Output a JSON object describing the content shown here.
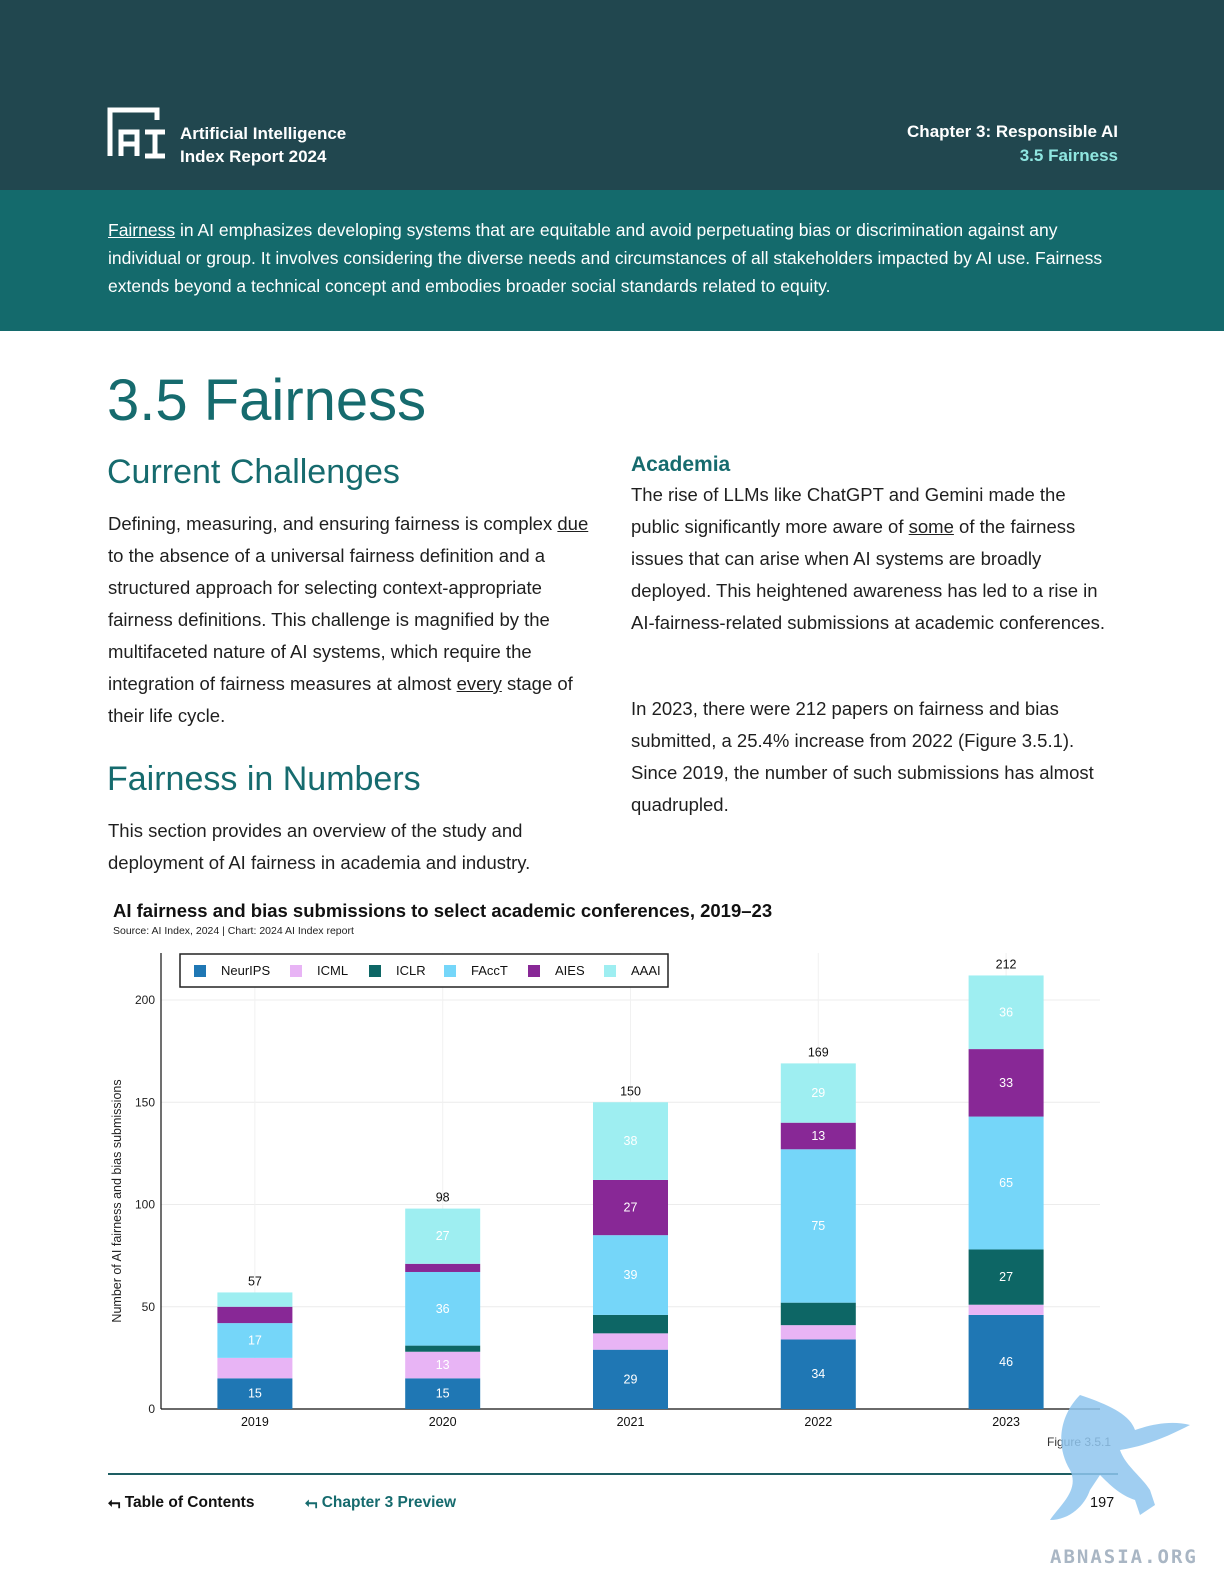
{
  "header": {
    "brand_line1": "Artificial Intelligence",
    "brand_line2": "Index Report 2024",
    "chapter": "Chapter 3: Responsible AI",
    "section": "3.5 Fairness"
  },
  "intro": {
    "link_word": "Fairness",
    "text": " in AI emphasizes developing systems that are equitable and avoid perpetuating bias or discrimination against any individual or group. It involves considering the diverse needs and circumstances of all stakeholders impacted by AI use. Fairness extends beyond a technical concept and embodies broader social standards related to equity."
  },
  "main": {
    "title": "3.5 Fairness",
    "left": {
      "heading1": "Current Challenges",
      "p1_a": "Defining, measuring, and ensuring fairness is complex ",
      "p1_link1": "due",
      "p1_b": " to the absence of a universal fairness definition and a structured approach for selecting context-appropriate fairness definitions. This challenge is magnified by the multifaceted nature of AI systems, which require the integration of fairness measures at almost ",
      "p1_link2": "every",
      "p1_c": " stage of their life cycle.",
      "heading2": "Fairness in Numbers",
      "p2": "This section provides an overview of the study and deployment of AI fairness in academia and industry."
    },
    "right": {
      "heading": "Academia",
      "p1_a": "The rise of LLMs like ChatGPT and Gemini made the public significantly more aware of ",
      "p1_link": "some",
      "p1_b": " of the fairness issues that can arise when AI systems are broadly deployed. This heightened awareness has led to a rise in AI-fairness-related submissions at academic conferences.",
      "p2": "In 2023, there were 212 papers on fairness and bias submitted, a 25.4% increase from 2022 (Figure 3.5.1). Since 2019, the number of such submissions has almost quadrupled."
    }
  },
  "chart_data": {
    "type": "bar",
    "stacked": true,
    "title": "AI fairness and bias submissions to select academic conferences, 2019–23",
    "source": "Source: AI Index, 2024 | Chart: 2024 AI Index report",
    "ylabel": "Number of AI fairness and bias submissions",
    "xlabel": "",
    "ylim": [
      0,
      225
    ],
    "yticks": [
      0,
      50,
      100,
      150,
      200
    ],
    "categories": [
      "2019",
      "2020",
      "2021",
      "2022",
      "2023"
    ],
    "totals": [
      57,
      98,
      150,
      169,
      212
    ],
    "legend_position": "top-left",
    "series": [
      {
        "name": "NeurIPS",
        "color": "#1f77b4",
        "values": [
          15,
          15,
          29,
          34,
          46
        ],
        "labels": [
          "15",
          "15",
          "29",
          "34",
          "46"
        ]
      },
      {
        "name": "ICML",
        "color": "#e8b4f5",
        "values": [
          10,
          13,
          8,
          7,
          5
        ],
        "labels": [
          "",
          "13",
          "",
          "",
          ""
        ]
      },
      {
        "name": "ICLR",
        "color": "#0d6665",
        "values": [
          0,
          3,
          9,
          11,
          27
        ],
        "labels": [
          "",
          "",
          "",
          "",
          "27"
        ]
      },
      {
        "name": "FAccT",
        "color": "#75d6f9",
        "values": [
          17,
          36,
          39,
          75,
          65
        ],
        "labels": [
          "17",
          "36",
          "39",
          "75",
          "65"
        ]
      },
      {
        "name": "AIES",
        "color": "#882896",
        "values": [
          8,
          4,
          27,
          13,
          33
        ],
        "labels": [
          "",
          "",
          "27",
          "13",
          "33"
        ]
      },
      {
        "name": "AAAI",
        "color": "#9eeef1",
        "values": [
          7,
          27,
          38,
          29,
          36
        ],
        "labels": [
          "",
          "27",
          "38",
          "29",
          "36"
        ]
      }
    ],
    "figure_label": "Figure 3.5.1"
  },
  "footer": {
    "toc": "Table of Contents",
    "chapter_preview": "Chapter 3 Preview",
    "page": "197"
  },
  "watermark": {
    "text": "ABNASIA.ORG"
  }
}
